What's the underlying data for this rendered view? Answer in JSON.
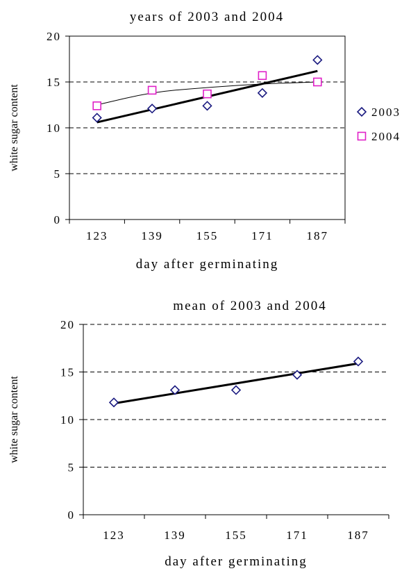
{
  "chart_data": [
    {
      "type": "scatter",
      "title": "years of 2003 and 2004",
      "xlabel": "day after germinating",
      "ylabel": "white sugar content",
      "categories": [
        "123",
        "139",
        "155",
        "171",
        "187"
      ],
      "ylim": [
        0,
        20
      ],
      "yticks": [
        "0",
        "5",
        "10",
        "15",
        "20"
      ],
      "grid": true,
      "legend": "right",
      "series": [
        {
          "name": "2003",
          "marker": "diamond",
          "color": "#1a1a80",
          "values": [
            11.1,
            12.1,
            12.4,
            13.8,
            17.4
          ]
        },
        {
          "name": "2004",
          "marker": "square",
          "color": "#e020c8",
          "values": [
            12.4,
            14.1,
            13.7,
            15.7,
            15.0
          ]
        }
      ],
      "trendlines": [
        {
          "series": "2003",
          "kind": "linear",
          "values": [
            10.6,
            11.9,
            13.3,
            14.8,
            16.2
          ]
        },
        {
          "series": "2004",
          "kind": "curve",
          "values": [
            12.5,
            13.9,
            14.4,
            14.8,
            15.0
          ]
        }
      ]
    },
    {
      "type": "scatter",
      "title": "mean of 2003 and 2004",
      "xlabel": "day after germinating",
      "ylabel": "white sugar content",
      "categories": [
        "123",
        "139",
        "155",
        "171",
        "187"
      ],
      "ylim": [
        0,
        20
      ],
      "yticks": [
        "0",
        "5",
        "10",
        "15",
        "20"
      ],
      "grid": true,
      "legend": "none",
      "series": [
        {
          "marker": "diamond",
          "color": "#1a1a80",
          "values": [
            11.8,
            13.1,
            13.1,
            14.7,
            16.1
          ]
        }
      ],
      "trendlines": [
        {
          "kind": "linear",
          "values": [
            11.7,
            12.7,
            13.8,
            14.8,
            15.9
          ]
        }
      ]
    }
  ]
}
